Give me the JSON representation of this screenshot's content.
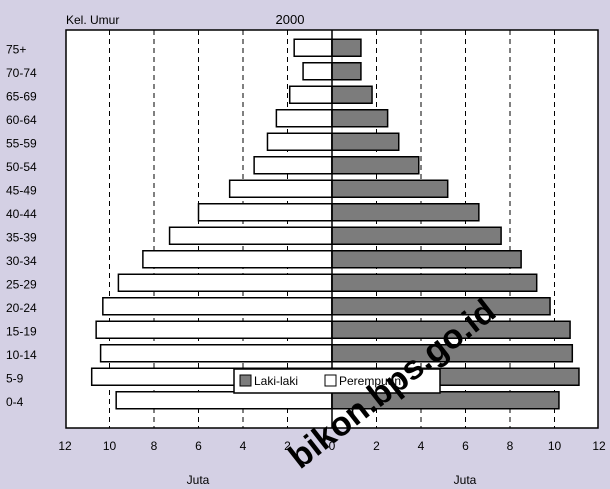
{
  "chart_data": {
    "type": "bar",
    "orientation": "horizontal",
    "layout": "population-pyramid",
    "title": "2000",
    "age_axis_label": "Kel. Umur",
    "xlabel_left": "Juta",
    "xlabel_right": "Juta",
    "categories": [
      "75+",
      "70-74",
      "65-69",
      "60-64",
      "55-59",
      "50-54",
      "45-49",
      "40-44",
      "35-39",
      "30-34",
      "25-29",
      "20-24",
      "15-19",
      "10-14",
      "5-9",
      "0-4"
    ],
    "x_ticks_left": [
      "12",
      "10",
      "8",
      "6",
      "4",
      "2",
      "0"
    ],
    "x_ticks_right": [
      "2",
      "4",
      "6",
      "8",
      "10",
      "12"
    ],
    "xlim": [
      0,
      12
    ],
    "grid": "vertical-dashed",
    "legend_placement": "bottom-center",
    "series": [
      {
        "name": "Laki-laki",
        "side": "left",
        "values": [
          1.7,
          1.3,
          1.9,
          2.5,
          2.9,
          3.5,
          4.6,
          6.0,
          7.3,
          8.5,
          9.6,
          10.3,
          10.6,
          10.4,
          10.8,
          9.7
        ]
      },
      {
        "name": "Perempuan",
        "side": "right",
        "values": [
          1.3,
          1.3,
          1.8,
          2.5,
          3.0,
          3.9,
          5.2,
          6.6,
          7.6,
          8.5,
          9.2,
          9.8,
          10.7,
          10.8,
          11.1,
          10.2
        ]
      }
    ],
    "colors": {
      "background": "#d4d0e4",
      "plot_area": "#ffffff",
      "left_fill": "#ffffff",
      "right_fill": "#7c7c7c",
      "bar_stroke": "#000000"
    },
    "watermark": "bikon.bps.go.id"
  }
}
